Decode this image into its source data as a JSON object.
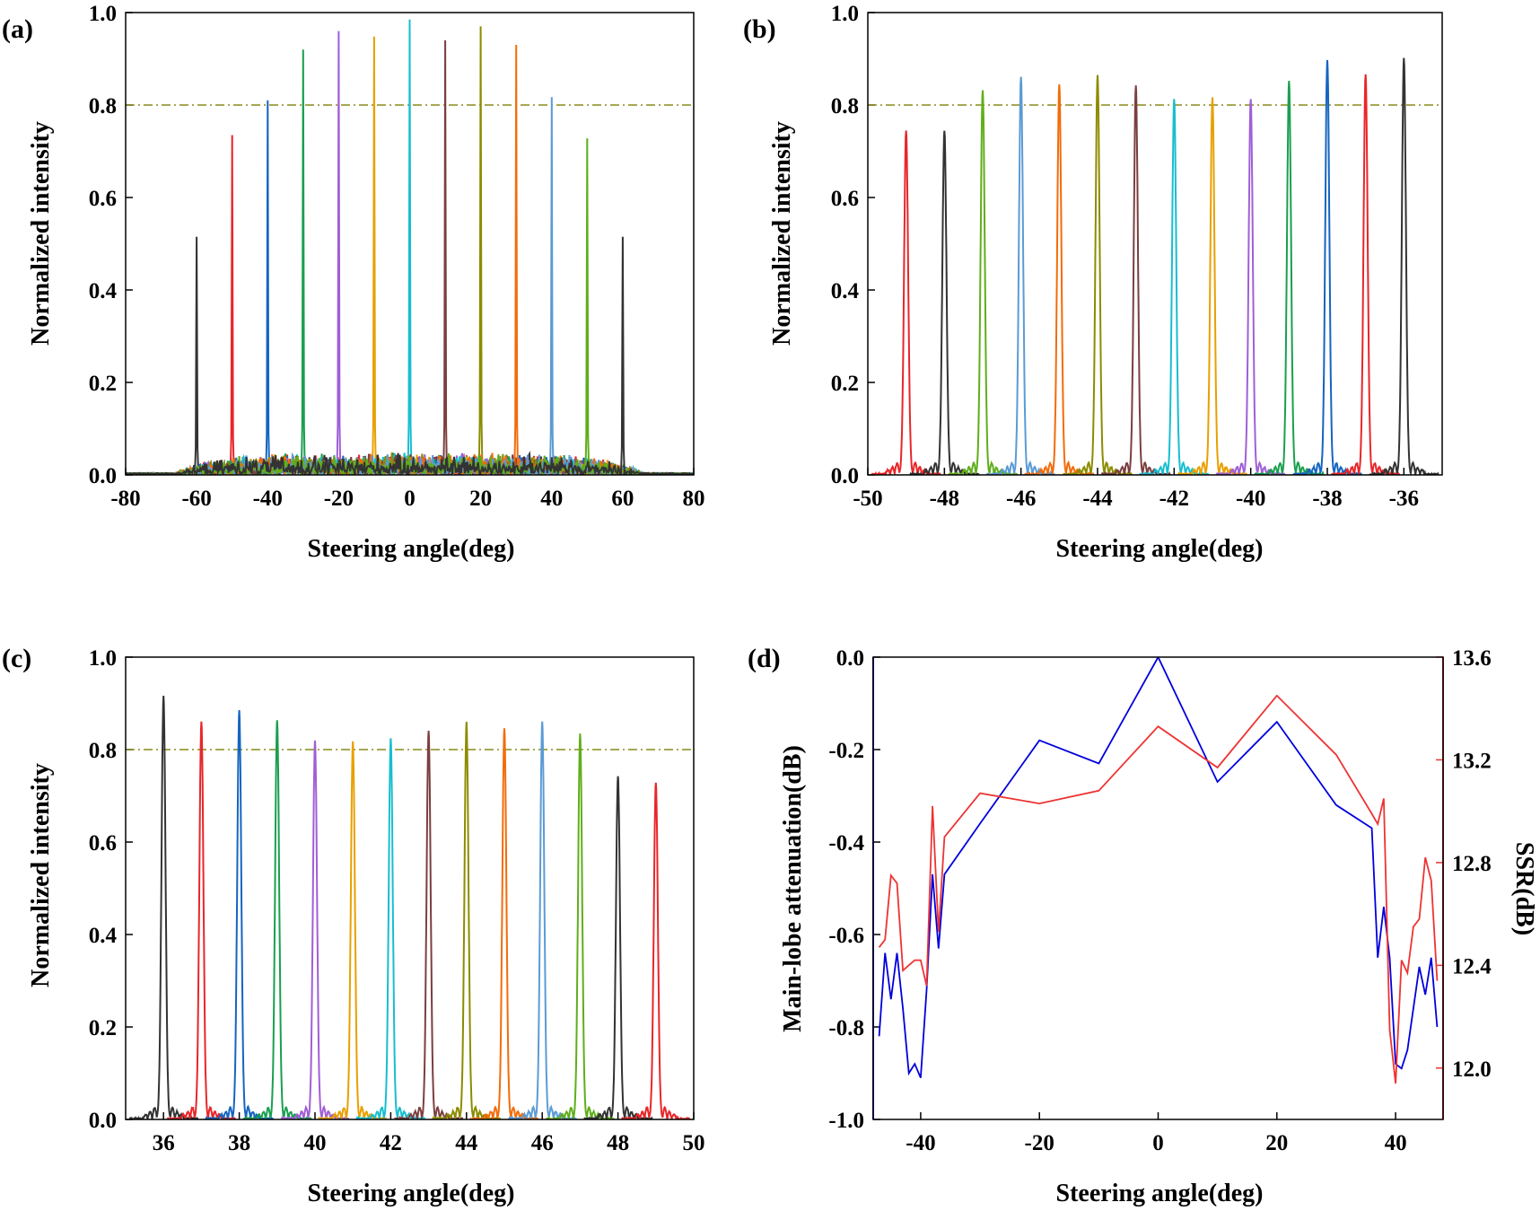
{
  "colors": {
    "black": "#333333",
    "red": "#e8262a",
    "blue": "#1565c0",
    "green": "#1a9f4f",
    "purple": "#a05fd6",
    "orange": "#e8a000",
    "gold": "#c8a000",
    "cyan": "#17becf",
    "brown": "#7b3f3f",
    "olive": "#8c8c00",
    "darkorange": "#f26c0a",
    "skyblue": "#5b9bd5",
    "lime": "#5fae1a",
    "threshold": "#8a8a1a",
    "d_blue": "#0000dd",
    "d_red": "#ee3333"
  },
  "chart_data": [
    {
      "type": "line",
      "panel": "(a)",
      "title": "",
      "xlabel": "Steering angle(deg)",
      "ylabel": "Normalized intensity",
      "xlim": [
        -80,
        80
      ],
      "ylim": [
        0,
        1.0
      ],
      "xticks": [
        "-80",
        "-60",
        "-40",
        "-20",
        "0",
        "20",
        "40",
        "60",
        "80"
      ],
      "yticks": [
        "0.0",
        "0.2",
        "0.4",
        "0.6",
        "0.8",
        "1.0"
      ],
      "threshold": 0.8,
      "noise_floor": 0.045,
      "peak_width": 0.35,
      "series": [
        {
          "name": "-60",
          "center": -60,
          "peak": 0.515,
          "color": "black"
        },
        {
          "name": "-50",
          "center": -50,
          "peak": 0.735,
          "color": "red"
        },
        {
          "name": "-40",
          "center": -40,
          "peak": 0.81,
          "color": "blue"
        },
        {
          "name": "-30",
          "center": -30,
          "peak": 0.92,
          "color": "green"
        },
        {
          "name": "-20",
          "center": -20,
          "peak": 0.96,
          "color": "purple"
        },
        {
          "name": "-10",
          "center": -10,
          "peak": 0.948,
          "color": "orange"
        },
        {
          "name": "0",
          "center": 0,
          "peak": 0.985,
          "color": "cyan"
        },
        {
          "name": "10",
          "center": 10,
          "peak": 0.94,
          "color": "brown"
        },
        {
          "name": "20",
          "center": 20,
          "peak": 0.97,
          "color": "olive"
        },
        {
          "name": "30",
          "center": 30,
          "peak": 0.93,
          "color": "darkorange"
        },
        {
          "name": "40",
          "center": 40,
          "peak": 0.817,
          "color": "skyblue"
        },
        {
          "name": "50",
          "center": 50,
          "peak": 0.728,
          "color": "lime"
        },
        {
          "name": "60",
          "center": 60,
          "peak": 0.515,
          "color": "black"
        }
      ]
    },
    {
      "type": "line",
      "panel": "(b)",
      "title": "",
      "xlabel": "Steering angle(deg)",
      "ylabel": "Normalized intensity",
      "xlim": [
        -50,
        -35
      ],
      "ylim": [
        0,
        1.0
      ],
      "xticks": [
        "-50",
        "-48",
        "-46",
        "-44",
        "-42",
        "-40",
        "-38",
        "-36"
      ],
      "yticks": [
        "0.0",
        "0.2",
        "0.4",
        "0.6",
        "0.8",
        "1.0"
      ],
      "threshold": 0.8,
      "peak_width": 0.09,
      "series": [
        {
          "name": "-49",
          "center": -49,
          "peak": 0.742,
          "color": "red"
        },
        {
          "name": "-48",
          "center": -48,
          "peak": 0.742,
          "color": "black"
        },
        {
          "name": "-47",
          "center": -47,
          "peak": 0.83,
          "color": "lime"
        },
        {
          "name": "-46",
          "center": -46,
          "peak": 0.86,
          "color": "skyblue"
        },
        {
          "name": "-45",
          "center": -45,
          "peak": 0.843,
          "color": "darkorange"
        },
        {
          "name": "-44",
          "center": -44,
          "peak": 0.862,
          "color": "olive"
        },
        {
          "name": "-43",
          "center": -43,
          "peak": 0.84,
          "color": "brown"
        },
        {
          "name": "-42",
          "center": -42,
          "peak": 0.812,
          "color": "cyan"
        },
        {
          "name": "-41",
          "center": -41,
          "peak": 0.815,
          "color": "orange"
        },
        {
          "name": "-40",
          "center": -40,
          "peak": 0.81,
          "color": "purple"
        },
        {
          "name": "-39",
          "center": -39,
          "peak": 0.85,
          "color": "green"
        },
        {
          "name": "-38",
          "center": -38,
          "peak": 0.895,
          "color": "blue"
        },
        {
          "name": "-37",
          "center": -37,
          "peak": 0.865,
          "color": "red"
        },
        {
          "name": "-36",
          "center": -36,
          "peak": 0.9,
          "color": "black"
        }
      ]
    },
    {
      "type": "line",
      "panel": "(c)",
      "title": "",
      "xlabel": "Steering angle(deg)",
      "ylabel": "Normalized intensity",
      "xlim": [
        35,
        50
      ],
      "ylim": [
        0,
        1.0
      ],
      "xticks": [
        "36",
        "38",
        "40",
        "42",
        "44",
        "46",
        "48",
        "50"
      ],
      "yticks": [
        "0.0",
        "0.2",
        "0.4",
        "0.6",
        "0.8",
        "1.0"
      ],
      "threshold": 0.8,
      "peak_width": 0.09,
      "series": [
        {
          "name": "36",
          "center": 36,
          "peak": 0.915,
          "color": "black"
        },
        {
          "name": "37",
          "center": 37,
          "peak": 0.86,
          "color": "red"
        },
        {
          "name": "38",
          "center": 38,
          "peak": 0.883,
          "color": "blue"
        },
        {
          "name": "39",
          "center": 39,
          "peak": 0.862,
          "color": "green"
        },
        {
          "name": "40",
          "center": 40,
          "peak": 0.818,
          "color": "purple"
        },
        {
          "name": "41",
          "center": 41,
          "peak": 0.815,
          "color": "orange"
        },
        {
          "name": "42",
          "center": 42,
          "peak": 0.823,
          "color": "cyan"
        },
        {
          "name": "43",
          "center": 43,
          "peak": 0.84,
          "color": "brown"
        },
        {
          "name": "44",
          "center": 44,
          "peak": 0.857,
          "color": "olive"
        },
        {
          "name": "45",
          "center": 45,
          "peak": 0.845,
          "color": "darkorange"
        },
        {
          "name": "46",
          "center": 46,
          "peak": 0.86,
          "color": "skyblue"
        },
        {
          "name": "47",
          "center": 47,
          "peak": 0.832,
          "color": "lime"
        },
        {
          "name": "48",
          "center": 48,
          "peak": 0.742,
          "color": "black"
        },
        {
          "name": "49",
          "center": 49,
          "peak": 0.728,
          "color": "red"
        }
      ]
    },
    {
      "type": "line",
      "panel": "(d)",
      "title": "",
      "xlabel": "Steering angle(deg)",
      "ylabel": "Main-lobe attenuation(dB)",
      "y2label": "SSR(dB)",
      "xlim": [
        -48,
        48
      ],
      "ylim": [
        -1.0,
        0.0
      ],
      "y2lim": [
        11.8,
        13.6
      ],
      "xticks": [
        "-40",
        "-20",
        "0",
        "20",
        "40"
      ],
      "xtick_values": [
        -40,
        -20,
        0,
        20,
        40
      ],
      "yticks": [
        "-1.0",
        "-0.8",
        "-0.6",
        "-0.4",
        "-0.2",
        "0.0"
      ],
      "y2ticks": [
        "12.0",
        "12.4",
        "12.8",
        "13.2",
        "13.6"
      ],
      "series": [
        {
          "name": "Main-lobe attenuation",
          "axis": "left",
          "color": "d_blue",
          "x": [
            -47,
            -46,
            -45,
            -44,
            -43,
            -42,
            -41,
            -40,
            -39,
            -38,
            -37,
            -36,
            -30,
            -20,
            -10,
            0,
            10,
            20,
            30,
            36,
            37,
            38,
            39,
            40,
            41,
            42,
            43,
            44,
            45,
            46,
            47
          ],
          "y": [
            -0.82,
            -0.64,
            -0.74,
            -0.64,
            -0.76,
            -0.9,
            -0.88,
            -0.91,
            -0.72,
            -0.47,
            -0.63,
            -0.47,
            -0.36,
            -0.18,
            -0.23,
            0.0,
            -0.27,
            -0.14,
            -0.32,
            -0.37,
            -0.65,
            -0.54,
            -0.65,
            -0.88,
            -0.89,
            -0.85,
            -0.76,
            -0.67,
            -0.73,
            -0.65,
            -0.8
          ]
        },
        {
          "name": "SSR",
          "axis": "right",
          "color": "d_red",
          "x": [
            -47,
            -46,
            -45,
            -44,
            -43,
            -42,
            -41,
            -40,
            -39,
            -38,
            -37,
            -36,
            -30,
            -20,
            -10,
            0,
            10,
            20,
            30,
            36,
            37,
            38,
            39,
            40,
            41,
            42,
            43,
            44,
            45,
            46,
            47
          ],
          "y": [
            12.47,
            12.5,
            12.75,
            12.72,
            12.38,
            12.4,
            12.42,
            12.42,
            12.32,
            13.02,
            12.53,
            12.9,
            13.07,
            13.03,
            13.08,
            13.33,
            13.17,
            13.45,
            13.22,
            12.99,
            12.95,
            13.05,
            12.15,
            11.94,
            12.42,
            12.37,
            12.55,
            12.58,
            12.82,
            12.73,
            12.34
          ]
        }
      ]
    }
  ]
}
